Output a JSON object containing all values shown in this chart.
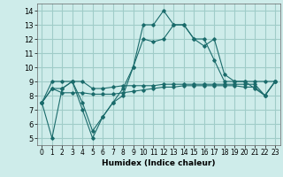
{
  "xlabel": "Humidex (Indice chaleur)",
  "background_color": "#ceecea",
  "grid_color": "#a0ccc8",
  "line_color": "#1a6b6b",
  "xlim": [
    -0.5,
    23.5
  ],
  "ylim": [
    4.5,
    14.5
  ],
  "xticks": [
    0,
    1,
    2,
    3,
    4,
    5,
    6,
    7,
    8,
    9,
    10,
    11,
    12,
    13,
    14,
    15,
    16,
    17,
    18,
    19,
    20,
    21,
    22,
    23
  ],
  "yticks": [
    5,
    6,
    7,
    8,
    9,
    10,
    11,
    12,
    13,
    14
  ],
  "series": [
    {
      "x": [
        0,
        1,
        2,
        3,
        4,
        5,
        6,
        7,
        8,
        9,
        10,
        11,
        12,
        13,
        14,
        15,
        16,
        17,
        18,
        19,
        20,
        21,
        22,
        23
      ],
      "y": [
        7.5,
        5.0,
        8.5,
        9.0,
        7.0,
        5.0,
        6.5,
        7.5,
        8.5,
        10.0,
        13.0,
        13.0,
        14.0,
        13.0,
        13.0,
        12.0,
        12.0,
        10.5,
        9.0,
        9.0,
        9.0,
        8.5,
        8.0,
        9.0
      ]
    },
    {
      "x": [
        0,
        1,
        2,
        3,
        4,
        5,
        6,
        7,
        8,
        9,
        10,
        11,
        12,
        13,
        14,
        15,
        16,
        17,
        18,
        19,
        20,
        21,
        22,
        23
      ],
      "y": [
        7.5,
        8.5,
        8.2,
        8.2,
        8.2,
        8.1,
        8.1,
        8.1,
        8.2,
        8.3,
        8.4,
        8.5,
        8.6,
        8.6,
        8.7,
        8.7,
        8.7,
        8.7,
        8.7,
        8.7,
        8.6,
        8.6,
        8.0,
        9.0
      ]
    },
    {
      "x": [
        0,
        1,
        2,
        3,
        4,
        5,
        6,
        7,
        8,
        9,
        10,
        11,
        12,
        13,
        14,
        15,
        16,
        17,
        18,
        19,
        20,
        21,
        22,
        23
      ],
      "y": [
        7.5,
        9.0,
        9.0,
        9.0,
        9.0,
        8.5,
        8.5,
        8.6,
        8.7,
        8.7,
        8.7,
        8.7,
        8.8,
        8.8,
        8.8,
        8.8,
        8.8,
        8.8,
        8.8,
        8.8,
        8.8,
        8.8,
        8.0,
        9.0
      ]
    },
    {
      "x": [
        0,
        1,
        2,
        3,
        4,
        5,
        6,
        7,
        8,
        9,
        10,
        11,
        12,
        13,
        14,
        15,
        16,
        17,
        18,
        19,
        20,
        21,
        22,
        23
      ],
      "y": [
        7.5,
        8.5,
        8.5,
        9.0,
        7.5,
        5.5,
        6.5,
        7.5,
        8.0,
        10.0,
        12.0,
        11.8,
        12.0,
        13.0,
        13.0,
        12.0,
        11.5,
        12.0,
        9.5,
        9.0,
        9.0,
        9.0,
        9.0,
        9.0
      ]
    }
  ]
}
